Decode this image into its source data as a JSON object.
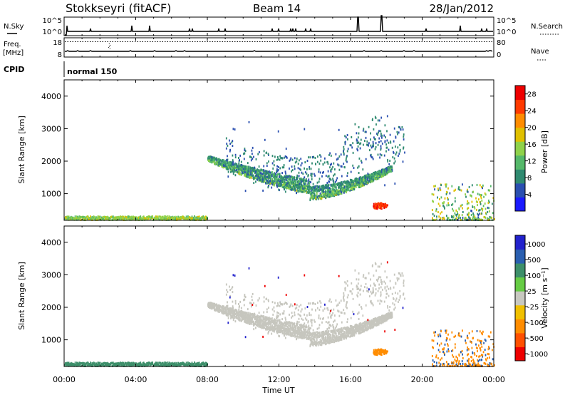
{
  "header": {
    "station": "Stokkseyri (fitACF)",
    "beam": "Beam 14",
    "date": "28/Jan/2012"
  },
  "top_panels": {
    "nsky_label": "N.Sky",
    "nsky_ticks": [
      "10^5",
      "10^0"
    ],
    "nsearch_label": "N.Search",
    "nsearch_ticks": [
      "10^5",
      "10^0"
    ],
    "freq_label": "Freq.",
    "freq_unit": "[MHz]",
    "freq_ticks": [
      "18",
      "8"
    ],
    "nave_label": "Nave",
    "nave_ticks": [
      "80",
      "0"
    ],
    "cpid_label": "CPID",
    "cpid_value": "normal 150"
  },
  "colors": {
    "power": [
      "#1a1aff",
      "#2a4fb0",
      "#2f8a70",
      "#55b86a",
      "#8fd24a",
      "#e0c000",
      "#ff8c00",
      "#ff3a00",
      "#ee0000"
    ],
    "velocity": [
      "#2222cc",
      "#2a5fb0",
      "#3d8f6a",
      "#66cc44",
      "#c8c8c0",
      "#f0c000",
      "#ff8c00",
      "#ff5000",
      "#ee0000"
    ],
    "gray_scatter": "#c6c6be"
  },
  "chart_data": [
    {
      "type": "heatmap",
      "panel": "power",
      "ylabel": "Slant Range [km]",
      "xlim": [
        0,
        24
      ],
      "ylim": [
        180,
        4500
      ],
      "yticks": [
        "1000",
        "2000",
        "3000",
        "4000"
      ],
      "colorbar": {
        "label": "Power [dB]",
        "ticks": [
          "4",
          "8",
          "12",
          "16",
          "20",
          "24",
          "28"
        ],
        "range": [
          0,
          30
        ]
      },
      "features": [
        {
          "name": "arc",
          "t_start": 8.0,
          "t_end": 18.3,
          "range_min_km": 800,
          "range_start_km": 2000,
          "range_end_km": 1700,
          "dB_min": 6,
          "dB_max": 18
        },
        {
          "name": "upper streaks",
          "t_start": 9.0,
          "t_end": 19.0,
          "range_min_km": 1200,
          "range_max_km": 3500,
          "dB": 5
        },
        {
          "name": "ground scatter band",
          "t_start": 0.0,
          "t_end": 8.0,
          "range_min_km": 190,
          "range_max_km": 300,
          "dB": 16
        },
        {
          "name": "blob",
          "t_center": 17.6,
          "range_center_km": 620,
          "dB": 26
        },
        {
          "name": "late scatter",
          "t_start": 20.5,
          "t_end": 24.0,
          "range_min_km": 190,
          "range_max_km": 1300,
          "dB": 10
        }
      ]
    },
    {
      "type": "heatmap",
      "panel": "velocity",
      "ylabel": "Slant Range [km]",
      "xlabel": "Time UT",
      "xlim": [
        0,
        24
      ],
      "xticks": [
        "00:00",
        "04:00",
        "08:00",
        "12:00",
        "16:00",
        "20:00",
        "00:00"
      ],
      "ylim": [
        180,
        4500
      ],
      "yticks": [
        "1000",
        "2000",
        "3000",
        "4000"
      ],
      "colorbar": {
        "label": "Velocity [m s⁻¹]",
        "ticks": [
          "1000",
          "500",
          "100",
          "25",
          "-25",
          "-100",
          "-500",
          "-1000"
        ]
      },
      "features": [
        {
          "name": "arc",
          "t_start": 8.0,
          "t_end": 18.3,
          "range_min_km": 800,
          "velocity_ms": 0
        },
        {
          "name": "ground scatter band",
          "t_start": 0.0,
          "t_end": 8.0,
          "range_min_km": 190,
          "range_max_km": 300,
          "velocity_ms": 60
        },
        {
          "name": "blob",
          "t_center": 17.6,
          "range_center_km": 620,
          "velocity_ms": -200
        },
        {
          "name": "late scatter",
          "t_start": 20.5,
          "t_end": 24.0,
          "range_min_km": 190,
          "range_max_km": 1300,
          "velocity_ms": -150
        }
      ]
    }
  ]
}
